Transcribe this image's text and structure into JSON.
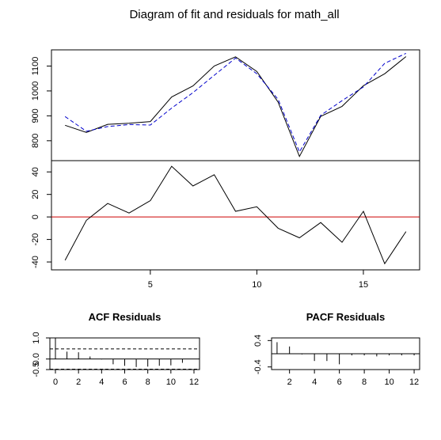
{
  "title": "Diagram of fit and residuals for math_all",
  "chart_data": [
    {
      "type": "line",
      "panel": "fit",
      "x": [
        1,
        2,
        3,
        4,
        5,
        6,
        7,
        8,
        9,
        10,
        11,
        12,
        13,
        14,
        15,
        16,
        17
      ],
      "series": [
        {
          "role": "actual",
          "color": "#000000",
          "style": "solid",
          "values": [
            862,
            833,
            866,
            870,
            877,
            976,
            1020,
            1100,
            1137,
            1078,
            955,
            737,
            898,
            938,
            1021,
            1069,
            1138
          ]
        },
        {
          "role": "fitted",
          "color": "#0000cc",
          "style": "dashed",
          "values": [
            897,
            838,
            857,
            865,
            863,
            931,
            993,
            1063,
            1132,
            1069,
            966,
            755,
            902,
            961,
            1016,
            1111,
            1151
          ]
        }
      ],
      "xlim": [
        0.36,
        17.64
      ],
      "ylim": [
        720,
        1165
      ],
      "yticks": [
        800,
        900,
        1000,
        1100
      ]
    },
    {
      "type": "line",
      "panel": "residuals",
      "x": [
        1,
        2,
        3,
        4,
        5,
        6,
        7,
        8,
        9,
        10,
        11,
        12,
        13,
        14,
        15,
        16,
        17
      ],
      "series": [
        {
          "role": "residual",
          "color": "#000000",
          "style": "solid",
          "values": [
            -38.5,
            -3,
            12,
            3.5,
            14.5,
            45,
            27.5,
            37.5,
            5,
            9,
            -10,
            -18.5,
            -5,
            -22.5,
            5,
            -41.5,
            -13
          ]
        }
      ],
      "reference_line": {
        "y": 0,
        "color": "#cc0000"
      },
      "xlim": [
        0.36,
        17.64
      ],
      "ylim": [
        -47,
        50
      ],
      "yticks": [
        -40,
        -20,
        0,
        20,
        40
      ],
      "xticks": [
        5,
        10,
        15
      ]
    },
    {
      "type": "bar",
      "title": "ACF Residuals",
      "lags": [
        0,
        1,
        2,
        3,
        4,
        5,
        6,
        7,
        8,
        9,
        10,
        11
      ],
      "values": [
        1.0,
        0.35,
        0.32,
        0.12,
        -0.02,
        -0.25,
        -0.32,
        -0.38,
        -0.36,
        -0.32,
        -0.3,
        -0.18
      ],
      "conf_bounds": [
        0.48,
        -0.48
      ],
      "xlim": [
        -0.48,
        12.48
      ],
      "ylim": [
        -0.5,
        1.0
      ],
      "yticks": [
        -0.5,
        0.0,
        1.0
      ],
      "ytick_labels": [
        "-0.5",
        "0.0",
        "1.0"
      ],
      "xticks": [
        0,
        2,
        4,
        6,
        8,
        10,
        12
      ]
    },
    {
      "type": "bar",
      "title": "PACF Residuals",
      "lags": [
        1,
        2,
        3,
        4,
        5,
        6,
        7,
        8,
        9,
        10,
        11,
        12
      ],
      "values": [
        0.35,
        0.22,
        -0.02,
        -0.22,
        -0.22,
        -0.32,
        -0.05,
        -0.05,
        -0.08,
        -0.05,
        -0.05,
        -0.05
      ],
      "conf_bounds": [
        0.48,
        -0.48
      ],
      "xlim": [
        0.56,
        12.44
      ],
      "ylim": [
        -0.48,
        0.48
      ],
      "yticks": [
        -0.4,
        0.4
      ],
      "ytick_labels": [
        "-0.4",
        "0.4"
      ],
      "xticks": [
        2,
        4,
        6,
        8,
        10,
        12
      ]
    }
  ]
}
